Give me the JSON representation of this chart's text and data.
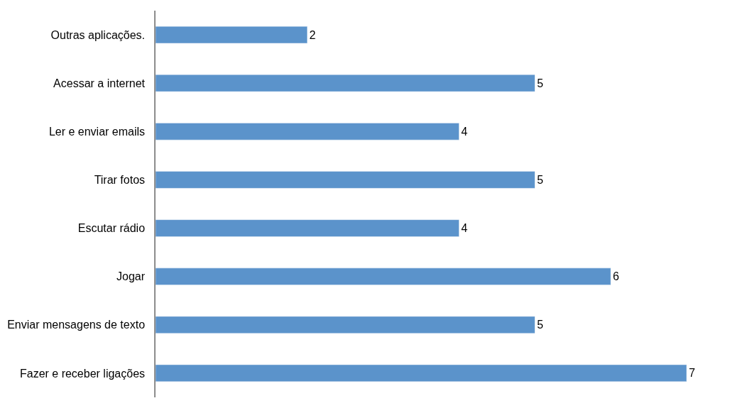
{
  "chart_data": {
    "type": "bar",
    "orientation": "horizontal",
    "data_labels": true,
    "color": "#5b93cb",
    "categories": [
      "Outras aplicações.",
      "Acessar a internet",
      "Ler e enviar emails",
      "Tirar fotos",
      "Escutar rádio",
      "Jogar",
      "Enviar mensagens de texto",
      "Fazer e receber ligações"
    ],
    "values": [
      2,
      5,
      4,
      5,
      4,
      6,
      5,
      7
    ]
  }
}
